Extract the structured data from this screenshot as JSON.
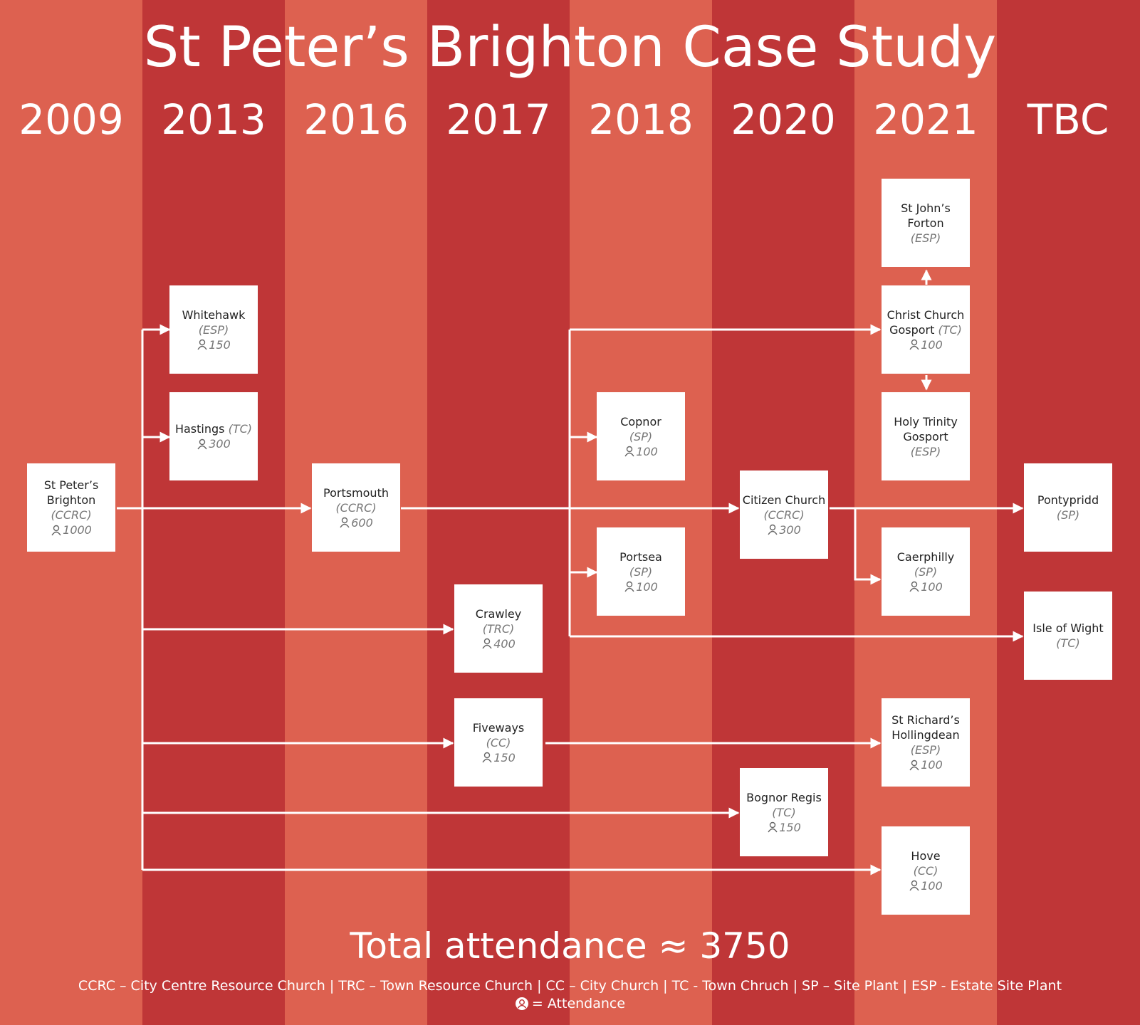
{
  "title": "St Peter’s Brighton Case Study",
  "years": [
    "2009",
    "2013",
    "2016",
    "2017",
    "2018",
    "2020",
    "2021",
    "TBC"
  ],
  "nodes": {
    "st_peters": {
      "name": "St Peter’s Brighton",
      "type": "(CCRC)",
      "attendance": "1000"
    },
    "whitehawk": {
      "name": "Whitehawk",
      "type": "(ESP)",
      "attendance": "150"
    },
    "hastings": {
      "name": "Hastings",
      "type": "(TC)",
      "attendance": "300"
    },
    "portsmouth": {
      "name": "Portsmouth",
      "type": "(CCRC)",
      "attendance": "600"
    },
    "crawley": {
      "name": "Crawley",
      "type": "(TRC)",
      "attendance": "400"
    },
    "fiveways": {
      "name": "Fiveways",
      "type": "(CC)",
      "attendance": "150"
    },
    "copnor": {
      "name": "Copnor",
      "type": "(SP)",
      "attendance": "100"
    },
    "portsea": {
      "name": "Portsea",
      "type": "(SP)",
      "attendance": "100"
    },
    "citizen": {
      "name": "Citizen Church",
      "type": "(CCRC)",
      "attendance": "300"
    },
    "bognor": {
      "name": "Bognor Regis",
      "type": "(TC)",
      "attendance": "150"
    },
    "st_johns": {
      "name": "St John’s Forton",
      "type": "(ESP)"
    },
    "christ_church": {
      "name": "Christ Church Gosport",
      "type": "(TC)",
      "attendance": "100"
    },
    "holy_trinity": {
      "name": "Holy Trinity Gosport",
      "type": "(ESP)"
    },
    "caerphilly": {
      "name": "Caerphilly",
      "type": "(SP)",
      "attendance": "100"
    },
    "st_richards": {
      "name": "St Richard’s Hollingdean",
      "type": "(ESP)",
      "attendance": "100"
    },
    "hove": {
      "name": "Hove",
      "type": "(CC)",
      "attendance": "100"
    },
    "pontypridd": {
      "name": "Pontypridd",
      "type": "(SP)"
    },
    "isle_of_wight": {
      "name": "Isle of Wight",
      "type": "(TC)"
    }
  },
  "total": "Total attendance ≈ 3750",
  "legend": "CCRC – City Centre Resource Church   |   TRC – Town Resource Church   |   CC – City Church   |   TC - Town Chruch   |   SP – Site Plant   |   ESP -  Estate Site Plant",
  "legend_attendance": "= Attendance",
  "colors": {
    "light_column": "#dd6150",
    "dark_column": "#bf3637",
    "box": "#ffffff",
    "arrow": "#ffffff"
  }
}
